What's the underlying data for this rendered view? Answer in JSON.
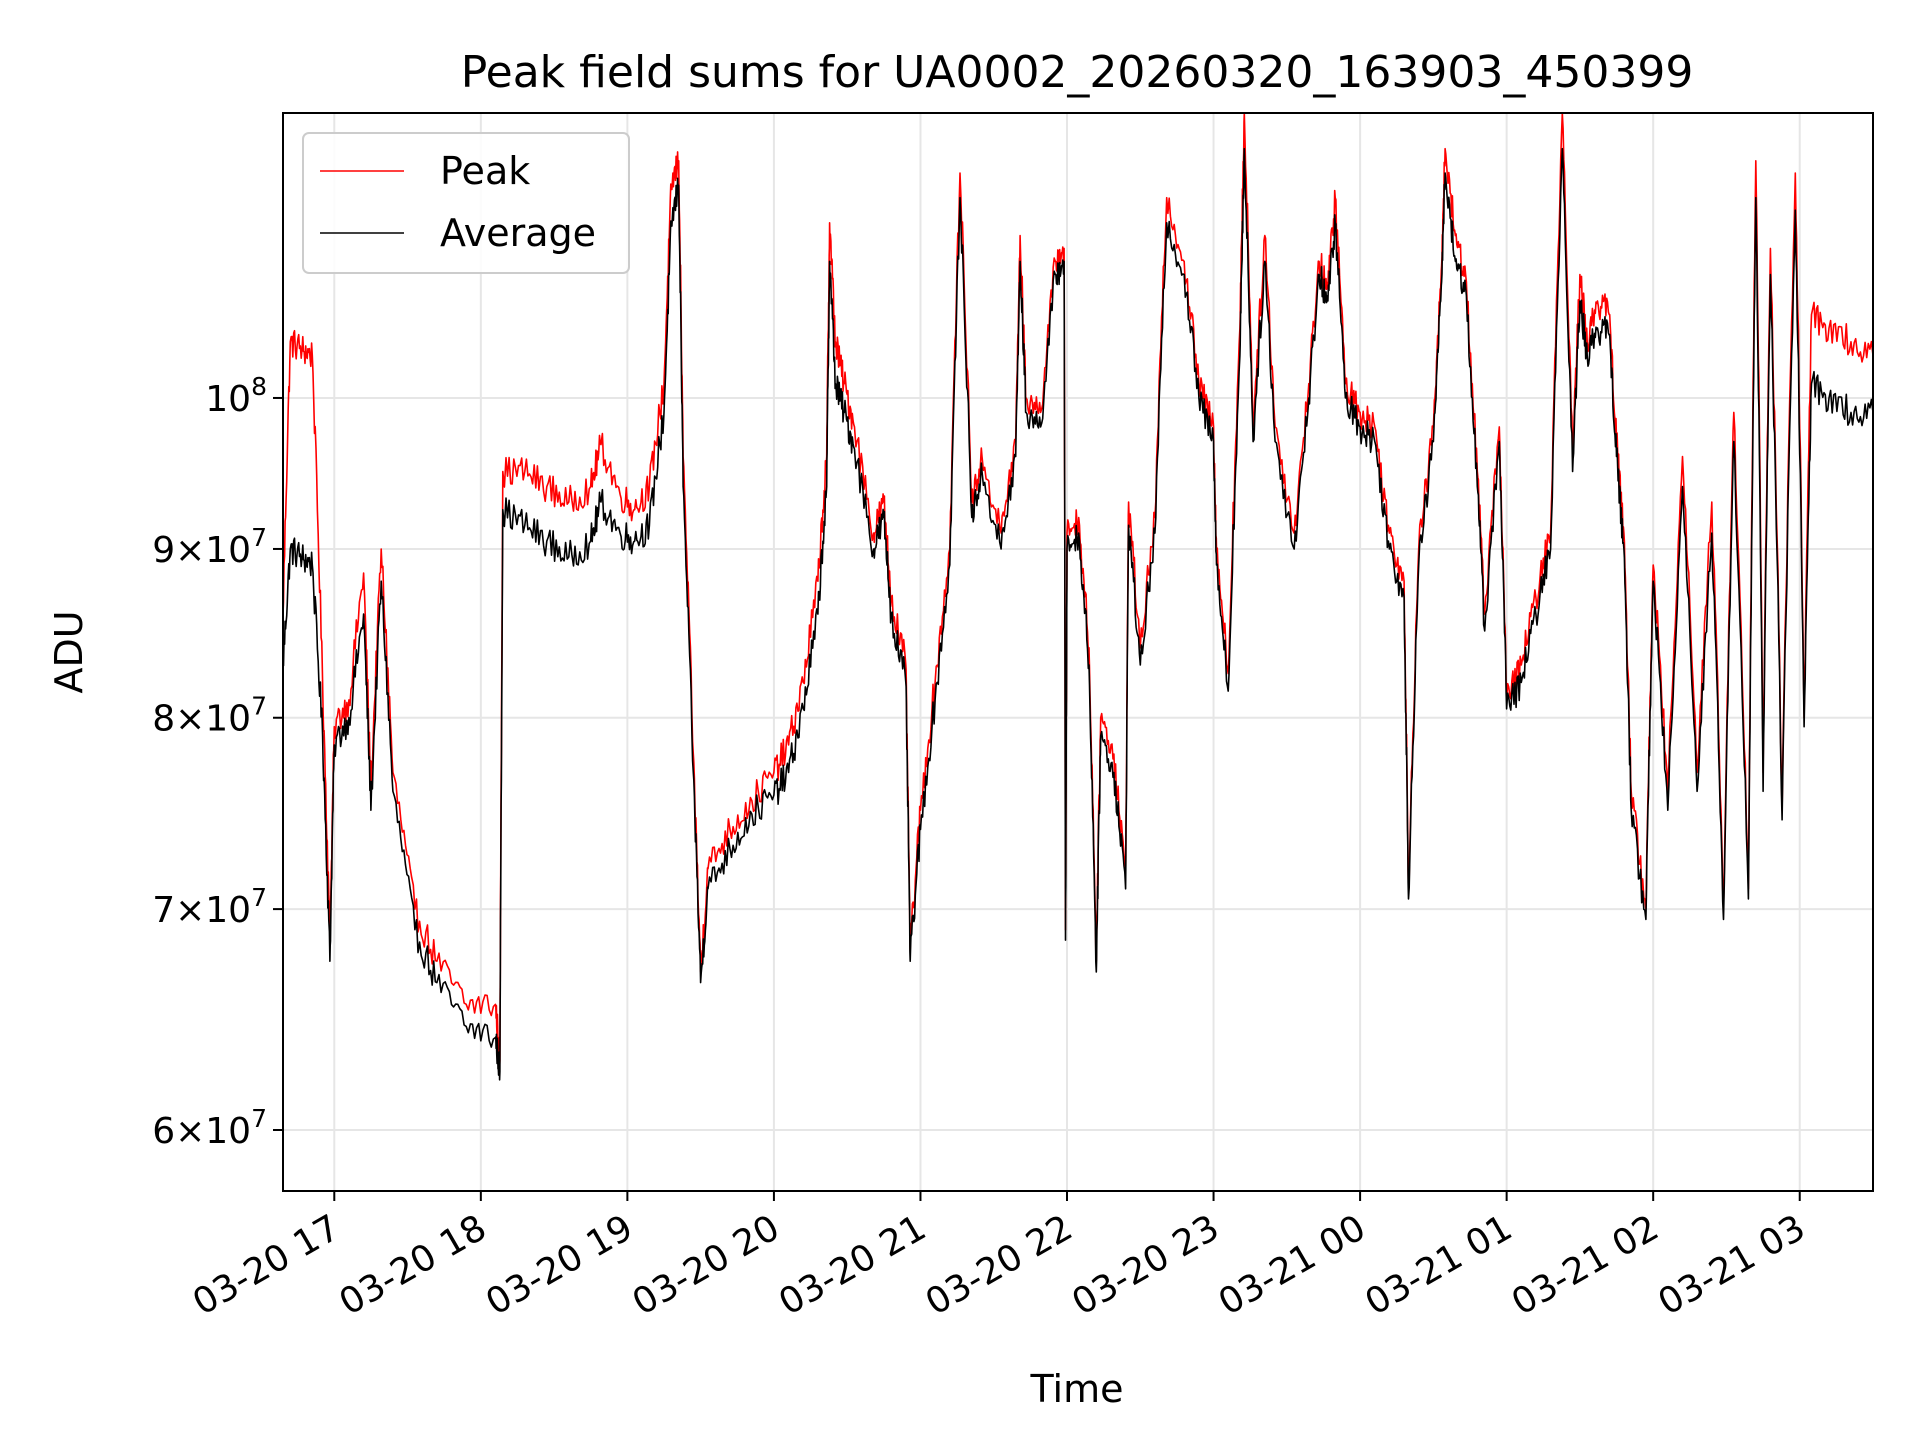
{
  "chart_data": {
    "type": "line",
    "title": "Peak field sums for UA0002_20260320_163903_450399",
    "xlabel": "Time",
    "ylabel": "ADU",
    "yscale": "log",
    "ylim": [
      57500000,
      122000000
    ],
    "xlim_hours": [
      16.65,
      27.5
    ],
    "grid": true,
    "legend_position": "top-left",
    "x_ticks": [
      "03-20 17",
      "03-20 18",
      "03-20 19",
      "03-20 20",
      "03-20 21",
      "03-20 22",
      "03-20 23",
      "03-21 00",
      "03-21 01",
      "03-21 02",
      "03-21 03"
    ],
    "y_ticks": [
      {
        "value": 60000000,
        "mant": "6",
        "exp": "7"
      },
      {
        "value": 70000000,
        "mant": "7",
        "exp": "7"
      },
      {
        "value": 80000000,
        "mant": "8",
        "exp": "7"
      },
      {
        "value": 90000000,
        "mant": "9",
        "exp": "7"
      },
      {
        "value": 100000000,
        "mant": "",
        "exp": "8"
      }
    ],
    "series": [
      {
        "name": "Peak",
        "color": "#ff0000",
        "points": [
          [
            16.65,
            86000000
          ],
          [
            16.7,
            104000000
          ],
          [
            16.78,
            103500000
          ],
          [
            16.85,
            103000000
          ],
          [
            16.92,
            82000000
          ],
          [
            16.97,
            68500000
          ],
          [
            17.0,
            79500000
          ],
          [
            17.1,
            81000000
          ],
          [
            17.2,
            88500000
          ],
          [
            17.25,
            76000000
          ],
          [
            17.32,
            90000000
          ],
          [
            17.4,
            77000000
          ],
          [
            17.55,
            70000000
          ],
          [
            17.7,
            67500000
          ],
          [
            17.9,
            65500000
          ],
          [
            18.1,
            65500000
          ],
          [
            18.13,
            63000000
          ],
          [
            18.15,
            95000000
          ],
          [
            18.3,
            95000000
          ],
          [
            18.45,
            94000000
          ],
          [
            18.6,
            93000000
          ],
          [
            18.75,
            94000000
          ],
          [
            18.82,
            96800000
          ],
          [
            18.95,
            93500000
          ],
          [
            19.05,
            92500000
          ],
          [
            19.15,
            94000000
          ],
          [
            19.25,
            101000000
          ],
          [
            19.3,
            116000000
          ],
          [
            19.35,
            118000000
          ],
          [
            19.38,
            96000000
          ],
          [
            19.45,
            78000000
          ],
          [
            19.5,
            67000000
          ],
          [
            19.55,
            72000000
          ],
          [
            19.7,
            74000000
          ],
          [
            19.85,
            75500000
          ],
          [
            20.0,
            77000000
          ],
          [
            20.1,
            78500000
          ],
          [
            20.2,
            82000000
          ],
          [
            20.3,
            88000000
          ],
          [
            20.36,
            96000000
          ],
          [
            20.38,
            113000000
          ],
          [
            20.42,
            104000000
          ],
          [
            20.48,
            101000000
          ],
          [
            20.55,
            98000000
          ],
          [
            20.68,
            91000000
          ],
          [
            20.75,
            93000000
          ],
          [
            20.8,
            87000000
          ],
          [
            20.9,
            83000000
          ],
          [
            20.93,
            68000000
          ],
          [
            21.0,
            75000000
          ],
          [
            21.1,
            82000000
          ],
          [
            21.2,
            90000000
          ],
          [
            21.27,
            117000000
          ],
          [
            21.35,
            93000000
          ],
          [
            21.42,
            96000000
          ],
          [
            21.55,
            91000000
          ],
          [
            21.65,
            97000000
          ],
          [
            21.68,
            112000000
          ],
          [
            21.72,
            100000000
          ],
          [
            21.82,
            99000000
          ],
          [
            21.92,
            110000000
          ],
          [
            21.98,
            111000000
          ],
          [
            21.99,
            69000000
          ],
          [
            22.0,
            91000000
          ],
          [
            22.08,
            92000000
          ],
          [
            22.15,
            84000000
          ],
          [
            22.2,
            67500000
          ],
          [
            22.23,
            80000000
          ],
          [
            22.32,
            78000000
          ],
          [
            22.4,
            71500000
          ],
          [
            22.42,
            93000000
          ],
          [
            22.5,
            84000000
          ],
          [
            22.6,
            92000000
          ],
          [
            22.68,
            115000000
          ],
          [
            22.8,
            110000000
          ],
          [
            22.9,
            101000000
          ],
          [
            23.0,
            98000000
          ],
          [
            23.02,
            90000000
          ],
          [
            23.1,
            82500000
          ],
          [
            23.18,
            105000000
          ],
          [
            23.21,
            122000000
          ],
          [
            23.27,
            98000000
          ],
          [
            23.35,
            112000000
          ],
          [
            23.42,
            98000000
          ],
          [
            23.55,
            91000000
          ],
          [
            23.65,
            101000000
          ],
          [
            23.72,
            110000000
          ],
          [
            23.78,
            108000000
          ],
          [
            23.83,
            115000000
          ],
          [
            23.9,
            101000000
          ],
          [
            24.0,
            99000000
          ],
          [
            24.1,
            98000000
          ],
          [
            24.2,
            91000000
          ],
          [
            24.3,
            88000000
          ],
          [
            24.33,
            71000000
          ],
          [
            24.4,
            90000000
          ],
          [
            24.5,
            98000000
          ],
          [
            24.55,
            108000000
          ],
          [
            24.58,
            119000000
          ],
          [
            24.65,
            112000000
          ],
          [
            24.72,
            109000000
          ],
          [
            24.8,
            95000000
          ],
          [
            24.85,
            86000000
          ],
          [
            24.95,
            98000000
          ],
          [
            25.0,
            81000000
          ],
          [
            25.1,
            83000000
          ],
          [
            25.2,
            87000000
          ],
          [
            25.3,
            91000000
          ],
          [
            25.38,
            122000000
          ],
          [
            25.45,
            96000000
          ],
          [
            25.5,
            109000000
          ],
          [
            25.55,
            104000000
          ],
          [
            25.62,
            107000000
          ],
          [
            25.7,
            106000000
          ],
          [
            25.75,
            97000000
          ],
          [
            25.8,
            91000000
          ],
          [
            25.85,
            76000000
          ],
          [
            25.95,
            70000000
          ],
          [
            26.0,
            89000000
          ],
          [
            26.1,
            76000000
          ],
          [
            26.2,
            96000000
          ],
          [
            26.3,
            77000000
          ],
          [
            26.4,
            93000000
          ],
          [
            26.48,
            70000000
          ],
          [
            26.55,
            99000000
          ],
          [
            26.65,
            71000000
          ],
          [
            26.7,
            118000000
          ],
          [
            26.75,
            77000000
          ],
          [
            26.8,
            111000000
          ],
          [
            26.88,
            75000000
          ],
          [
            26.97,
            117000000
          ],
          [
            27.03,
            80000000
          ],
          [
            27.08,
            106000000
          ],
          [
            27.2,
            105000000
          ],
          [
            27.35,
            104000000
          ],
          [
            27.5,
            103000000
          ]
        ]
      },
      {
        "name": "Average",
        "color": "#000000",
        "points": [
          [
            16.65,
            83000000
          ],
          [
            16.7,
            90000000
          ],
          [
            16.78,
            89500000
          ],
          [
            16.85,
            89000000
          ],
          [
            16.92,
            79000000
          ],
          [
            16.97,
            67500000
          ],
          [
            17.0,
            78500000
          ],
          [
            17.1,
            80000000
          ],
          [
            17.2,
            86000000
          ],
          [
            17.25,
            75000000
          ],
          [
            17.32,
            88000000
          ],
          [
            17.4,
            76000000
          ],
          [
            17.55,
            69000000
          ],
          [
            17.7,
            66500000
          ],
          [
            17.9,
            64500000
          ],
          [
            18.1,
            64000000
          ],
          [
            18.13,
            62500000
          ],
          [
            18.15,
            92500000
          ],
          [
            18.3,
            91500000
          ],
          [
            18.45,
            90500000
          ],
          [
            18.6,
            89500000
          ],
          [
            18.75,
            90500000
          ],
          [
            18.82,
            93000000
          ],
          [
            18.95,
            91000000
          ],
          [
            19.05,
            90500000
          ],
          [
            19.15,
            91500000
          ],
          [
            19.25,
            99000000
          ],
          [
            19.3,
            113000000
          ],
          [
            19.35,
            116000000
          ],
          [
            19.38,
            94000000
          ],
          [
            19.45,
            77000000
          ],
          [
            19.5,
            66500000
          ],
          [
            19.55,
            71000000
          ],
          [
            19.7,
            73000000
          ],
          [
            19.85,
            74800000
          ],
          [
            20.0,
            75800000
          ],
          [
            20.1,
            77000000
          ],
          [
            20.2,
            80500000
          ],
          [
            20.3,
            86000000
          ],
          [
            20.36,
            94000000
          ],
          [
            20.38,
            110000000
          ],
          [
            20.42,
            101000000
          ],
          [
            20.48,
            99000000
          ],
          [
            20.55,
            96500000
          ],
          [
            20.68,
            90000000
          ],
          [
            20.75,
            92000000
          ],
          [
            20.8,
            86000000
          ],
          [
            20.9,
            82000000
          ],
          [
            20.93,
            67500000
          ],
          [
            21.0,
            74000000
          ],
          [
            21.1,
            81000000
          ],
          [
            21.2,
            89000000
          ],
          [
            21.27,
            115000000
          ],
          [
            21.35,
            92000000
          ],
          [
            21.42,
            95000000
          ],
          [
            21.55,
            90000000
          ],
          [
            21.65,
            96000000
          ],
          [
            21.68,
            110000000
          ],
          [
            21.72,
            99000000
          ],
          [
            21.82,
            98000000
          ],
          [
            21.92,
            109000000
          ],
          [
            21.98,
            110000000
          ],
          [
            21.99,
            68500000
          ],
          [
            22.0,
            90000000
          ],
          [
            22.08,
            91000000
          ],
          [
            22.15,
            83000000
          ],
          [
            22.2,
            67000000
          ],
          [
            22.23,
            79000000
          ],
          [
            22.32,
            77000000
          ],
          [
            22.4,
            71000000
          ],
          [
            22.42,
            91500000
          ],
          [
            22.5,
            83000000
          ],
          [
            22.6,
            91000000
          ],
          [
            22.68,
            113000000
          ],
          [
            22.8,
            109000000
          ],
          [
            22.9,
            100000000
          ],
          [
            23.0,
            97000000
          ],
          [
            23.02,
            89000000
          ],
          [
            23.1,
            81500000
          ],
          [
            23.18,
            103000000
          ],
          [
            23.21,
            119000000
          ],
          [
            23.27,
            97000000
          ],
          [
            23.35,
            110000000
          ],
          [
            23.42,
            97000000
          ],
          [
            23.55,
            90000000
          ],
          [
            23.65,
            100000000
          ],
          [
            23.72,
            109000000
          ],
          [
            23.78,
            107000000
          ],
          [
            23.83,
            113000000
          ],
          [
            23.9,
            100000000
          ],
          [
            24.0,
            98000000
          ],
          [
            24.1,
            97000000
          ],
          [
            24.2,
            90000000
          ],
          [
            24.3,
            87000000
          ],
          [
            24.33,
            70500000
          ],
          [
            24.4,
            89000000
          ],
          [
            24.5,
            97000000
          ],
          [
            24.55,
            107000000
          ],
          [
            24.58,
            117000000
          ],
          [
            24.65,
            110000000
          ],
          [
            24.72,
            108000000
          ],
          [
            24.8,
            94000000
          ],
          [
            24.85,
            85000000
          ],
          [
            24.95,
            97000000
          ],
          [
            25.0,
            80500000
          ],
          [
            25.1,
            82000000
          ],
          [
            25.2,
            86000000
          ],
          [
            25.3,
            90000000
          ],
          [
            25.38,
            119000000
          ],
          [
            25.45,
            95000000
          ],
          [
            25.5,
            107000000
          ],
          [
            25.55,
            103000000
          ],
          [
            25.62,
            105000000
          ],
          [
            25.7,
            104500000
          ],
          [
            25.75,
            96000000
          ],
          [
            25.8,
            90000000
          ],
          [
            25.85,
            75000000
          ],
          [
            25.95,
            69500000
          ],
          [
            26.0,
            88000000
          ],
          [
            26.1,
            75000000
          ],
          [
            26.2,
            94000000
          ],
          [
            26.3,
            76000000
          ],
          [
            26.4,
            91000000
          ],
          [
            26.48,
            69500000
          ],
          [
            26.55,
            97000000
          ],
          [
            26.65,
            70500000
          ],
          [
            26.7,
            115000000
          ],
          [
            26.75,
            76000000
          ],
          [
            26.8,
            109000000
          ],
          [
            26.88,
            74500000
          ],
          [
            26.97,
            114000000
          ],
          [
            27.03,
            79500000
          ],
          [
            27.08,
            101000000
          ],
          [
            27.2,
            100000000
          ],
          [
            27.35,
            99000000
          ],
          [
            27.5,
            99000000
          ]
        ]
      }
    ]
  }
}
